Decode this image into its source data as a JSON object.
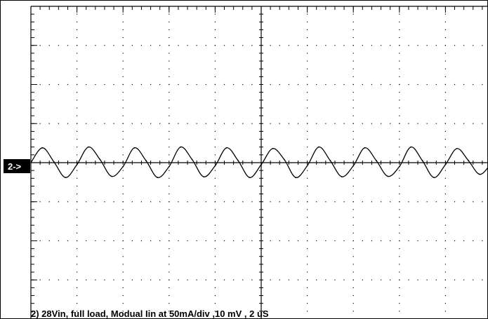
{
  "chart_data": {
    "type": "line",
    "channel_marker": "2->",
    "caption": "2) 28Vin, full load, Modual Iin at 50mA/div ,10 mV , 2 uS",
    "grid": true,
    "xlim": [
      0,
      10
    ],
    "ylim": [
      -4,
      4
    ],
    "divisions": {
      "x": 10,
      "y": 8
    },
    "series": [
      {
        "x": [
          0.0,
          0.25,
          0.5,
          0.75,
          1.0,
          1.25,
          1.5,
          1.75,
          2.0,
          2.25,
          2.5,
          2.75,
          3.0,
          3.25,
          3.5,
          3.75,
          4.0,
          4.25,
          4.5,
          4.75,
          5.0,
          5.25,
          5.5,
          5.75,
          6.0,
          6.25,
          6.5,
          6.75,
          7.0,
          7.25,
          7.5,
          7.75,
          8.0,
          8.25,
          8.5,
          8.75,
          9.0,
          9.25,
          9.5,
          9.75,
          10.0
        ],
        "y": [
          0.0,
          0.38,
          0.02,
          -0.38,
          -0.05,
          0.4,
          0.08,
          -0.35,
          -0.1,
          0.38,
          0.05,
          -0.38,
          -0.1,
          0.4,
          0.08,
          -0.36,
          -0.08,
          0.38,
          0.05,
          -0.38,
          -0.05,
          0.36,
          0.08,
          -0.38,
          -0.08,
          0.4,
          0.05,
          -0.36,
          -0.08,
          0.38,
          0.05,
          -0.35,
          -0.1,
          0.4,
          0.05,
          -0.38,
          -0.05,
          0.36,
          0.05,
          -0.3,
          0.0
        ]
      }
    ],
    "color": "#000000"
  }
}
